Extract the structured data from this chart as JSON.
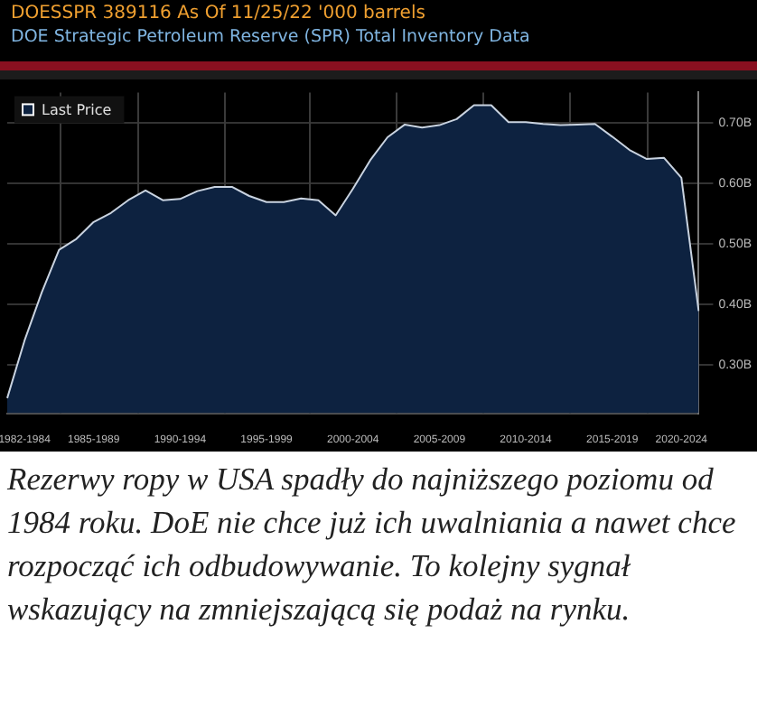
{
  "chart_data": {
    "type": "area",
    "title": "DOE Strategic Petroleum Reserve (SPR) Total Inventory Data",
    "subtitle": "DOESSPR 389116 As Of 11/25/22 '000 barrels",
    "categories": [
      null,
      "1982-1984",
      null,
      null,
      null,
      "1985-1989",
      null,
      null,
      null,
      null,
      "1990-1994",
      null,
      null,
      null,
      null,
      "1995-1999",
      null,
      null,
      null,
      null,
      "2000-2004",
      null,
      null,
      null,
      null,
      "2005-2009",
      null,
      null,
      null,
      null,
      "2010-2014",
      null,
      null,
      null,
      null,
      "2015-2019",
      null,
      null,
      null,
      "2020-2024",
      null
    ],
    "series": [
      {
        "name": "Last Price",
        "color": "#0d2240",
        "values": [
          0.245,
          0.34,
          0.42,
          0.49,
          0.508,
          0.536,
          0.551,
          0.572,
          0.588,
          0.572,
          0.574,
          0.587,
          0.594,
          0.594,
          0.579,
          0.569,
          0.569,
          0.575,
          0.572,
          0.547,
          0.591,
          0.638,
          0.676,
          0.697,
          0.692,
          0.696,
          0.706,
          0.729,
          0.729,
          0.701,
          0.701,
          0.698,
          0.696,
          0.697,
          0.698,
          0.677,
          0.655,
          0.64,
          0.642,
          0.609,
          0.389
        ]
      }
    ],
    "ylim": [
      0.22,
      0.75
    ],
    "yticks": [
      {
        "value": 0.3,
        "label": "0.30B"
      },
      {
        "value": 0.4,
        "label": "0.40B"
      },
      {
        "value": 0.5,
        "label": "0.50B"
      },
      {
        "value": 0.6,
        "label": "0.60B"
      },
      {
        "value": 0.7,
        "label": "0.70B"
      }
    ],
    "grid": true,
    "legend": "top left",
    "annotations": [
      "Rezerwy ropy w USA spadły do najniższego poziomu od 1984 roku. DoE nie chce już ich uwalniania a nawet chce rozpocząć ich odbudowywanie. To kolejny sygnał wskazujący na zmniejszającą się podaż na rynku."
    ]
  }
}
